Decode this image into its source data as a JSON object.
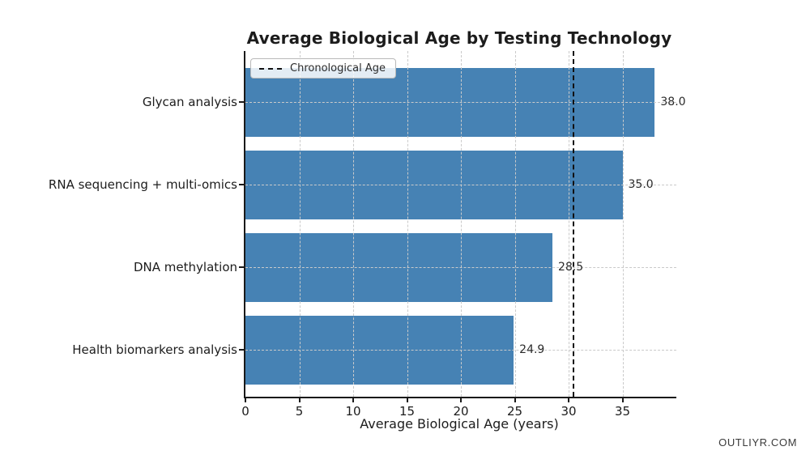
{
  "watermark": "OUTLIYR.COM",
  "chart_data": {
    "type": "bar",
    "orientation": "horizontal",
    "title": "Average Biological Age by Testing Technology",
    "categories": [
      "Glycan analysis",
      "RNA sequencing + multi-omics",
      "DNA methylation",
      "Health biomarkers analysis"
    ],
    "values": [
      38.0,
      35.0,
      28.5,
      24.9
    ],
    "value_labels": [
      "38.0",
      "35.0",
      "28.5",
      "24.9"
    ],
    "xlabel": "Average Biological Age (years)",
    "xlim": [
      0,
      40
    ],
    "xticks": [
      0,
      5,
      10,
      15,
      20,
      25,
      30,
      35
    ],
    "grid": true,
    "bar_color": "#4682B4",
    "gridline_color": "#cacaca",
    "reference_line": {
      "label": "Chronological Age",
      "value": 30.4,
      "style": "dashed",
      "color": "#111111"
    },
    "legend": {
      "entries": [
        "Chronological Age"
      ],
      "position": "upper left"
    }
  }
}
